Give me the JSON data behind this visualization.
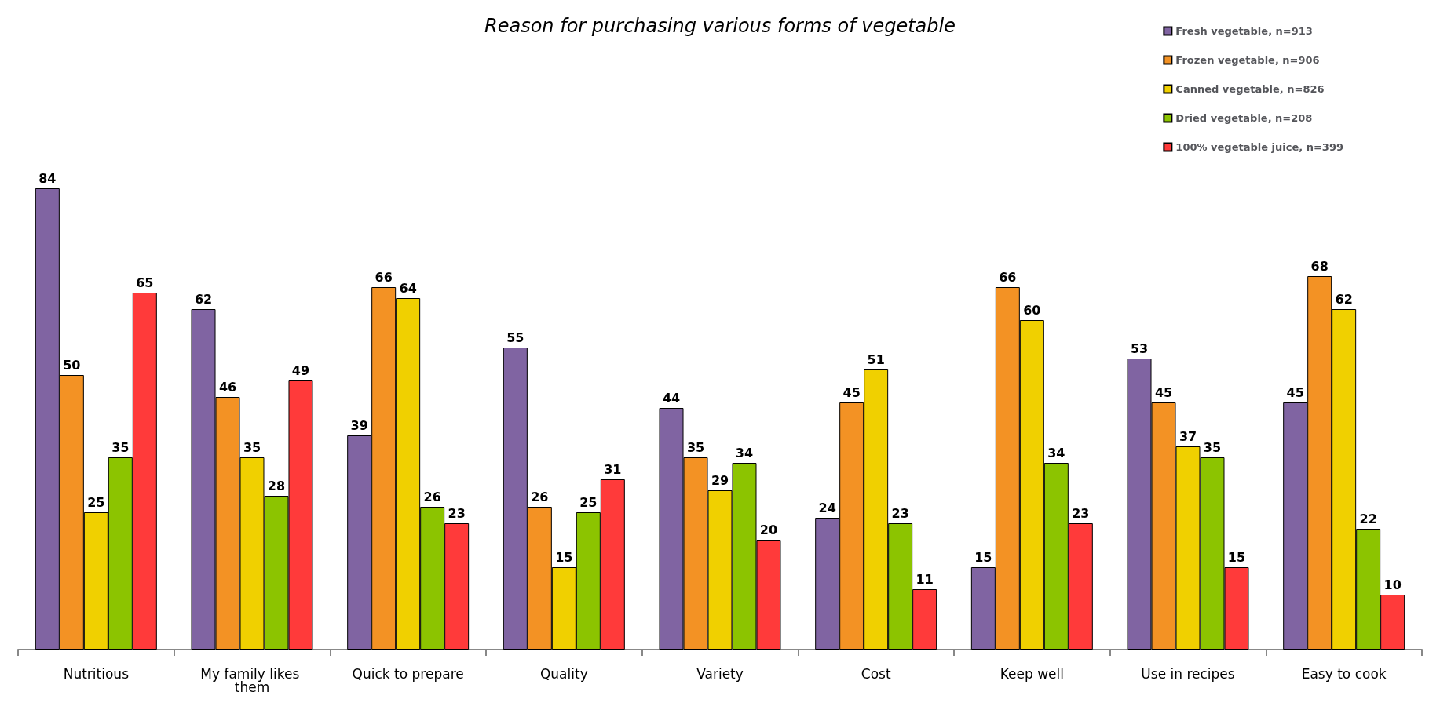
{
  "chart_data": {
    "type": "bar",
    "title": "Reason for purchasing various forms of vegetable",
    "categories": [
      "Nutritious",
      "My family likes them",
      "Quick to prepare",
      "Quality",
      "Variety",
      "Cost",
      "Keep well",
      "Use in recipes",
      "Easy to cook"
    ],
    "series": [
      {
        "name": "Fresh vegetable, n=913",
        "color": "#8064a2",
        "values": [
          84,
          62,
          39,
          55,
          44,
          24,
          15,
          53,
          45
        ]
      },
      {
        "name": "Frozen vegetable, n=906",
        "color": "#f39224",
        "values": [
          50,
          46,
          66,
          26,
          35,
          45,
          66,
          45,
          68
        ]
      },
      {
        "name": "Canned vegetable, n=826",
        "color": "#f0d000",
        "values": [
          25,
          35,
          64,
          15,
          29,
          51,
          60,
          37,
          62
        ]
      },
      {
        "name": "Dried vegetable, n=208",
        "color": "#8cc400",
        "values": [
          35,
          28,
          26,
          25,
          34,
          23,
          34,
          35,
          22
        ]
      },
      {
        "name": "100% vegetable juice, n=399",
        "color": "#ff3a3a",
        "values": [
          65,
          49,
          23,
          31,
          20,
          11,
          23,
          15,
          10
        ]
      }
    ],
    "data_labels": true,
    "legend": "top right"
  }
}
